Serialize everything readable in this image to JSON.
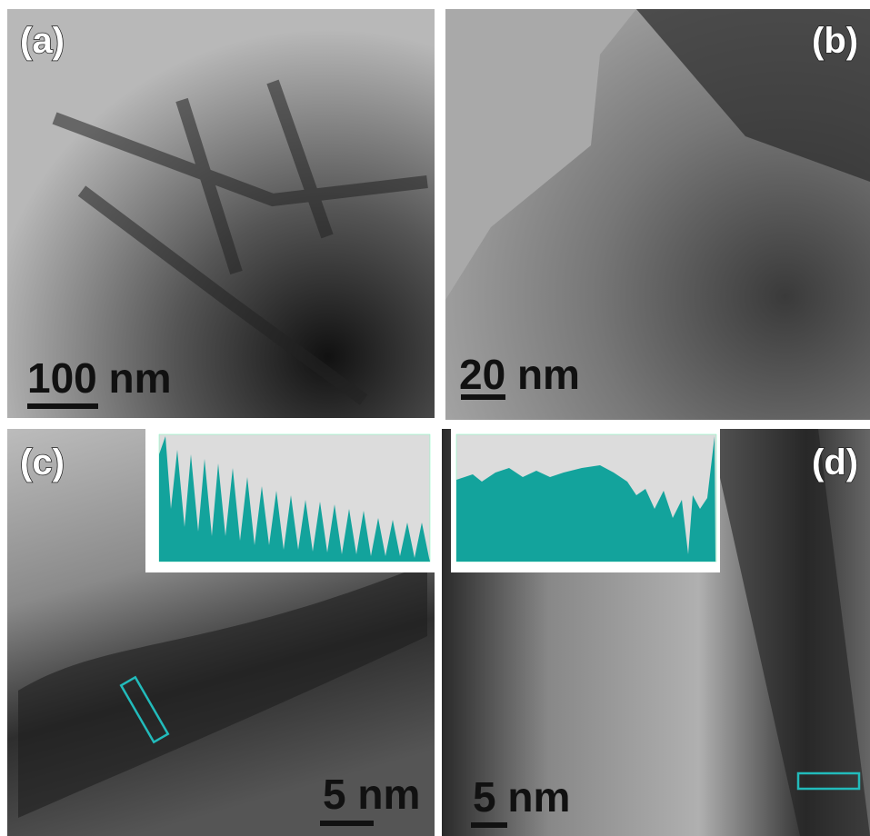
{
  "panels": [
    {
      "label": "(a)",
      "scale": "100 nm"
    },
    {
      "label": "(b)",
      "scale": "20 nm"
    },
    {
      "label": "(c)",
      "scale": "5 nm"
    },
    {
      "label": "(d)",
      "scale": "5 nm"
    }
  ]
}
